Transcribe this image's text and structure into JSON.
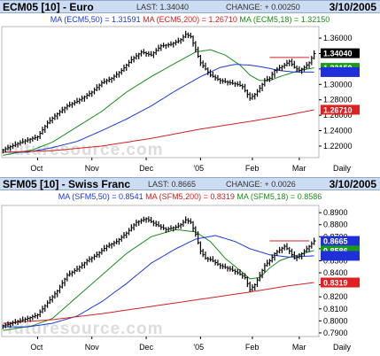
{
  "panels": [
    {
      "symbol": "ECM05 [10] - Euro",
      "last": "LAST: 1.34040",
      "change": "CHANGE: + 0.00250",
      "date": "3/10/2005",
      "ma_labels": [
        "MA (ECM5,50) = 1.31591",
        "MA (ECM5,200) = 1.26710",
        "MA (ECM5,18) = 1.32150"
      ],
      "price_boxes": [
        {
          "text": "1.34040",
          "value": 1.3404,
          "color": "#000000",
          "text_color": "#ffffff"
        },
        {
          "text": "1.32150",
          "value": 1.3215,
          "color": "#1a9a1a",
          "text_color": "#ffffff"
        },
        {
          "text": "",
          "value": 1.3159,
          "color": "#2030d8",
          "text_color": "#ffffff"
        },
        {
          "text": "1.26710",
          "value": 1.2671,
          "color": "#e02020",
          "text_color": "#ffffff"
        }
      ],
      "x_labels": [
        "Oct",
        "Nov",
        "Dec",
        "'05",
        "Feb",
        "Mar",
        "Daily"
      ],
      "watermark": "futuresource.com"
    },
    {
      "symbol": "SFM05 [10] - Swiss Franc",
      "last": "LAST: 0.8665",
      "change": "CHANGE: + 0.0026",
      "date": "3/10/2005",
      "ma_labels": [
        "MA (SFM5,50) = 0.8541",
        "MA (SFM5,200) = 0.8319",
        "MA (SFM5,18) = 0.8586"
      ],
      "price_boxes": [
        {
          "text": "0.8665",
          "value": 0.8665,
          "color": "#2030d8",
          "text_color": "#ffffff"
        },
        {
          "text": "0.8586",
          "value": 0.8586,
          "color": "#1a9a1a",
          "text_color": "#ffffff"
        },
        {
          "text": "",
          "value": 0.8541,
          "color": "#2030d8",
          "text_color": "#ffffff"
        },
        {
          "text": "0.8319",
          "value": 0.8319,
          "color": "#e02020",
          "text_color": "#ffffff"
        }
      ],
      "x_labels": [
        "Oct",
        "Nov",
        "Dec",
        "'05",
        "Feb",
        "Mar",
        "Daily"
      ],
      "watermark": "futuresource.com"
    }
  ],
  "chart_data": [
    {
      "type": "line",
      "title": "ECM05 [10] - Euro",
      "y_ticks": [
        1.22,
        1.24,
        1.26,
        1.28,
        1.3,
        1.32,
        1.34,
        1.36
      ],
      "ylim": [
        1.205,
        1.375
      ],
      "x_ticks": [
        {
          "label": "Oct",
          "idx": 14
        },
        {
          "label": "Nov",
          "idx": 36
        },
        {
          "label": "Dec",
          "idx": 58
        },
        {
          "label": "'05",
          "idx": 80
        },
        {
          "label": "Feb",
          "idx": 101
        },
        {
          "label": "Mar",
          "idx": 120
        }
      ],
      "n_days": 127,
      "price_anchors": [
        [
          0,
          1.215
        ],
        [
          5,
          1.222
        ],
        [
          10,
          1.228
        ],
        [
          14,
          1.232
        ],
        [
          18,
          1.25
        ],
        [
          22,
          1.262
        ],
        [
          26,
          1.272
        ],
        [
          30,
          1.278
        ],
        [
          36,
          1.29
        ],
        [
          40,
          1.302
        ],
        [
          44,
          1.308
        ],
        [
          48,
          1.318
        ],
        [
          52,
          1.332
        ],
        [
          56,
          1.342
        ],
        [
          60,
          1.338
        ],
        [
          64,
          1.35
        ],
        [
          68,
          1.352
        ],
        [
          72,
          1.358
        ],
        [
          74,
          1.365
        ],
        [
          76,
          1.362
        ],
        [
          78,
          1.345
        ],
        [
          80,
          1.328
        ],
        [
          82,
          1.32
        ],
        [
          84,
          1.312
        ],
        [
          88,
          1.305
        ],
        [
          92,
          1.302
        ],
        [
          95,
          1.3
        ],
        [
          97,
          1.297
        ],
        [
          100,
          1.282
        ],
        [
          102,
          1.287
        ],
        [
          104,
          1.295
        ],
        [
          106,
          1.305
        ],
        [
          108,
          1.308
        ],
        [
          110,
          1.318
        ],
        [
          114,
          1.325
        ],
        [
          116,
          1.33
        ],
        [
          118,
          1.322
        ],
        [
          120,
          1.318
        ],
        [
          122,
          1.322
        ],
        [
          124,
          1.328
        ],
        [
          126,
          1.34
        ]
      ],
      "series": [
        {
          "name": "MA (ECM5,18)",
          "color": "#1a8c1a",
          "anchors": [
            [
              0,
              1.208
            ],
            [
              12,
              1.215
            ],
            [
              20,
              1.225
            ],
            [
              30,
              1.245
            ],
            [
              40,
              1.265
            ],
            [
              50,
              1.29
            ],
            [
              60,
              1.31
            ],
            [
              70,
              1.328
            ],
            [
              78,
              1.342
            ],
            [
              84,
              1.345
            ],
            [
              90,
              1.338
            ],
            [
              96,
              1.325
            ],
            [
              100,
              1.312
            ],
            [
              104,
              1.305
            ],
            [
              108,
              1.305
            ],
            [
              112,
              1.31
            ],
            [
              116,
              1.314
            ],
            [
              120,
              1.318
            ],
            [
              126,
              1.3215
            ]
          ]
        },
        {
          "name": "MA (ECM5,50)",
          "color": "#1a3ad6",
          "anchors": [
            [
              0,
              1.212
            ],
            [
              10,
              1.212
            ],
            [
              20,
              1.218
            ],
            [
              30,
              1.226
            ],
            [
              40,
              1.24
            ],
            [
              50,
              1.255
            ],
            [
              60,
              1.272
            ],
            [
              70,
              1.292
            ],
            [
              80,
              1.31
            ],
            [
              88,
              1.322
            ],
            [
              94,
              1.326
            ],
            [
              100,
              1.325
            ],
            [
              106,
              1.322
            ],
            [
              112,
              1.318
            ],
            [
              118,
              1.316
            ],
            [
              126,
              1.3159
            ]
          ]
        },
        {
          "name": "MA (ECM5,200)",
          "color": "#d42020",
          "anchors": [
            [
              0,
              1.212
            ],
            [
              20,
              1.214
            ],
            [
              40,
              1.22
            ],
            [
              60,
              1.23
            ],
            [
              80,
              1.242
            ],
            [
              100,
              1.252
            ],
            [
              115,
              1.26
            ],
            [
              126,
              1.2671
            ]
          ]
        }
      ],
      "resistance_line": {
        "value": 1.335,
        "from_idx": 108,
        "to_idx": 124,
        "color": "#d42020"
      }
    },
    {
      "type": "line",
      "title": "SFM05 [10] - Swiss Franc",
      "y_ticks": [
        0.79,
        0.8,
        0.81,
        0.82,
        0.83,
        0.84,
        0.85,
        0.86,
        0.87,
        0.88,
        0.89
      ],
      "ylim": [
        0.787,
        0.896
      ],
      "x_ticks": [
        {
          "label": "Oct",
          "idx": 14
        },
        {
          "label": "Nov",
          "idx": 36
        },
        {
          "label": "Dec",
          "idx": 58
        },
        {
          "label": "'05",
          "idx": 80
        },
        {
          "label": "Feb",
          "idx": 101
        },
        {
          "label": "Mar",
          "idx": 120
        }
      ],
      "n_days": 127,
      "price_anchors": [
        [
          0,
          0.796
        ],
        [
          5,
          0.799
        ],
        [
          10,
          0.802
        ],
        [
          14,
          0.805
        ],
        [
          18,
          0.815
        ],
        [
          22,
          0.825
        ],
        [
          26,
          0.838
        ],
        [
          30,
          0.843
        ],
        [
          34,
          0.85
        ],
        [
          38,
          0.855
        ],
        [
          42,
          0.862
        ],
        [
          46,
          0.866
        ],
        [
          50,
          0.873
        ],
        [
          54,
          0.882
        ],
        [
          58,
          0.885
        ],
        [
          62,
          0.88
        ],
        [
          66,
          0.876
        ],
        [
          70,
          0.878
        ],
        [
          72,
          0.88
        ],
        [
          74,
          0.884
        ],
        [
          76,
          0.882
        ],
        [
          78,
          0.872
        ],
        [
          80,
          0.858
        ],
        [
          82,
          0.852
        ],
        [
          84,
          0.851
        ],
        [
          88,
          0.846
        ],
        [
          92,
          0.843
        ],
        [
          95,
          0.84
        ],
        [
          98,
          0.836
        ],
        [
          100,
          0.826
        ],
        [
          102,
          0.83
        ],
        [
          104,
          0.838
        ],
        [
          106,
          0.846
        ],
        [
          108,
          0.85
        ],
        [
          110,
          0.856
        ],
        [
          114,
          0.862
        ],
        [
          116,
          0.858
        ],
        [
          118,
          0.852
        ],
        [
          120,
          0.854
        ],
        [
          122,
          0.858
        ],
        [
          124,
          0.862
        ],
        [
          126,
          0.8665
        ]
      ],
      "series": [
        {
          "name": "MA (SFM5,18)",
          "color": "#1a8c1a",
          "anchors": [
            [
              0,
              0.792
            ],
            [
              12,
              0.796
            ],
            [
              20,
              0.802
            ],
            [
              30,
              0.82
            ],
            [
              40,
              0.838
            ],
            [
              50,
              0.856
            ],
            [
              60,
              0.87
            ],
            [
              70,
              0.876
            ],
            [
              78,
              0.874
            ],
            [
              84,
              0.866
            ],
            [
              90,
              0.852
            ],
            [
              96,
              0.842
            ],
            [
              100,
              0.835
            ],
            [
              104,
              0.836
            ],
            [
              108,
              0.844
            ],
            [
              112,
              0.85
            ],
            [
              116,
              0.853
            ],
            [
              120,
              0.855
            ],
            [
              126,
              0.8586
            ]
          ]
        },
        {
          "name": "MA (SFM5,50)",
          "color": "#1a3ad6",
          "anchors": [
            [
              0,
              0.795
            ],
            [
              10,
              0.795
            ],
            [
              20,
              0.798
            ],
            [
              30,
              0.804
            ],
            [
              40,
              0.816
            ],
            [
              50,
              0.831
            ],
            [
              60,
              0.848
            ],
            [
              70,
              0.86
            ],
            [
              78,
              0.868
            ],
            [
              86,
              0.871
            ],
            [
              94,
              0.866
            ],
            [
              100,
              0.86
            ],
            [
              108,
              0.855
            ],
            [
              116,
              0.853
            ],
            [
              126,
              0.8541
            ]
          ]
        },
        {
          "name": "MA (SFM5,200)",
          "color": "#d42020",
          "anchors": [
            [
              0,
              0.798
            ],
            [
              20,
              0.801
            ],
            [
              40,
              0.806
            ],
            [
              60,
              0.812
            ],
            [
              80,
              0.818
            ],
            [
              100,
              0.824
            ],
            [
              115,
              0.829
            ],
            [
              126,
              0.8319
            ]
          ]
        }
      ],
      "resistance_line": {
        "value": 0.8665,
        "from_idx": 108,
        "to_idx": 124,
        "color": "#d42020"
      }
    }
  ]
}
